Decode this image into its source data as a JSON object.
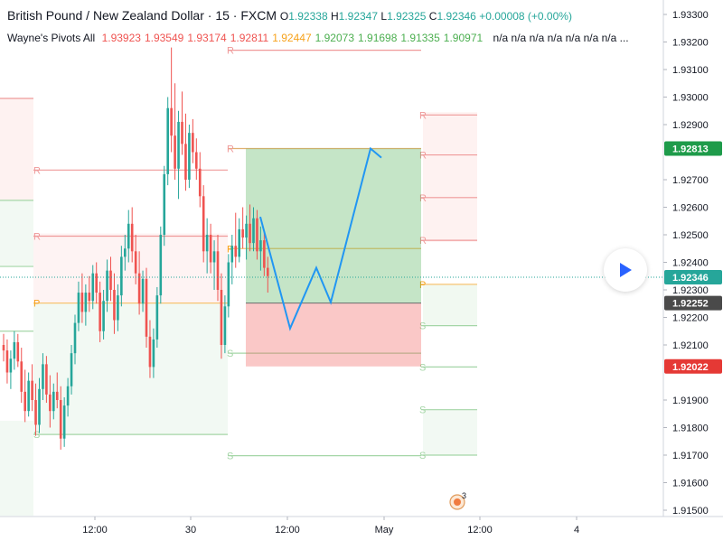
{
  "header": {
    "title": "British Pound / New Zealand Dollar · 15 · FXCM",
    "ohlc": [
      {
        "label": "O",
        "value": "1.92338"
      },
      {
        "label": "H",
        "value": "1.92347"
      },
      {
        "label": "L",
        "value": "1.92325"
      },
      {
        "label": "C",
        "value": "1.92346"
      }
    ],
    "change": "+0.00008 (+0.00%)",
    "up_color": "#26a69a"
  },
  "indicator": {
    "name": "Wayne's Pivots All",
    "values": [
      {
        "v": "1.93923",
        "color": "#ef5350"
      },
      {
        "v": "1.93549",
        "color": "#ef5350"
      },
      {
        "v": "1.93174",
        "color": "#ef5350"
      },
      {
        "v": "1.92811",
        "color": "#ef5350"
      },
      {
        "v": "1.92447",
        "color": "#f7a21b"
      },
      {
        "v": "1.92073",
        "color": "#4caf50"
      },
      {
        "v": "1.91698",
        "color": "#4caf50"
      },
      {
        "v": "1.91335",
        "color": "#4caf50"
      },
      {
        "v": "1.90971",
        "color": "#4caf50"
      }
    ],
    "na": "n/a n/a n/a n/a n/a n/a n/a ..."
  },
  "badges": [
    {
      "value": "1.92813",
      "price": 1.92813,
      "bg": "#1e9b4a"
    },
    {
      "value": "1.92346",
      "price": 1.92346,
      "bg": "#26a69a"
    },
    {
      "value": "1.92252",
      "price": 1.92252,
      "bg": "#4a4a4a"
    },
    {
      "value": "1.92022",
      "price": 1.92022,
      "bg": "#e53935"
    }
  ],
  "event_count": "3",
  "chart_data": {
    "type": "candlestick",
    "symbol": "GBPNZD",
    "timeframe": "15",
    "y_ticks": [
      "1.93300",
      "1.93200",
      "1.93100",
      "1.93000",
      "1.92900",
      "1.92700",
      "1.92600",
      "1.92500",
      "1.92400",
      "1.92300",
      "1.92200",
      "1.92100",
      "1.91900",
      "1.91800",
      "1.91700",
      "1.91600",
      "1.91500"
    ],
    "ylim": [
      1.9149,
      1.9336
    ],
    "x_ticks": [
      "12:00",
      "30",
      "12:00",
      "May",
      "12:00",
      "4"
    ],
    "last_price": 1.92346,
    "pivot_labels": {
      "left": [
        "R",
        "R",
        "P",
        "S",
        "S"
      ],
      "middle": [
        "R",
        "R",
        "P",
        "S",
        "S"
      ],
      "right": [
        "R",
        "R",
        "R",
        "R",
        "P",
        "S",
        "S",
        "S",
        "S"
      ]
    },
    "position": {
      "type": "long",
      "entry": 1.92252,
      "target": 1.92813,
      "stop": 1.92022
    },
    "candles": [
      [
        1.921,
        1.9214,
        1.9204,
        1.9208
      ],
      [
        1.9208,
        1.9212,
        1.9196,
        1.92
      ],
      [
        1.92,
        1.9208,
        1.9194,
        1.9205
      ],
      [
        1.9205,
        1.9215,
        1.9201,
        1.9211
      ],
      [
        1.9211,
        1.9214,
        1.9202,
        1.9204
      ],
      [
        1.9204,
        1.9209,
        1.9189,
        1.9193
      ],
      [
        1.9193,
        1.9201,
        1.9182,
        1.9186
      ],
      [
        1.9186,
        1.92,
        1.9184,
        1.9197
      ],
      [
        1.9197,
        1.9203,
        1.9186,
        1.919
      ],
      [
        1.919,
        1.9196,
        1.9177,
        1.9181
      ],
      [
        1.9181,
        1.9198,
        1.9178,
        1.9194
      ],
      [
        1.9194,
        1.9207,
        1.919,
        1.9203
      ],
      [
        1.9203,
        1.9206,
        1.9189,
        1.9192
      ],
      [
        1.9192,
        1.9199,
        1.918,
        1.9186
      ],
      [
        1.9186,
        1.9196,
        1.9183,
        1.9193
      ],
      [
        1.9193,
        1.92,
        1.9187,
        1.919
      ],
      [
        1.919,
        1.9195,
        1.9172,
        1.9176
      ],
      [
        1.9176,
        1.9191,
        1.9173,
        1.9188
      ],
      [
        1.9188,
        1.9198,
        1.9184,
        1.9195
      ],
      [
        1.9195,
        1.921,
        1.9192,
        1.9207
      ],
      [
        1.9207,
        1.9221,
        1.9203,
        1.9218
      ],
      [
        1.9218,
        1.9233,
        1.9215,
        1.9229
      ],
      [
        1.9229,
        1.9236,
        1.9218,
        1.9222
      ],
      [
        1.9222,
        1.9232,
        1.9217,
        1.9229
      ],
      [
        1.9229,
        1.9235,
        1.9222,
        1.9226
      ],
      [
        1.9226,
        1.9239,
        1.9223,
        1.9236
      ],
      [
        1.9236,
        1.924,
        1.9225,
        1.9229
      ],
      [
        1.9229,
        1.9233,
        1.9211,
        1.9215
      ],
      [
        1.9215,
        1.923,
        1.9212,
        1.9226
      ],
      [
        1.9226,
        1.9241,
        1.9222,
        1.9237
      ],
      [
        1.9237,
        1.9242,
        1.9226,
        1.923
      ],
      [
        1.923,
        1.9236,
        1.9214,
        1.9219
      ],
      [
        1.9219,
        1.9232,
        1.9215,
        1.9228
      ],
      [
        1.9228,
        1.9246,
        1.9224,
        1.9242
      ],
      [
        1.9242,
        1.925,
        1.9237,
        1.9245
      ],
      [
        1.9245,
        1.9259,
        1.924,
        1.9254
      ],
      [
        1.9254,
        1.926,
        1.924,
        1.9244
      ],
      [
        1.9244,
        1.925,
        1.9232,
        1.9236
      ],
      [
        1.9236,
        1.9244,
        1.9221,
        1.9225
      ],
      [
        1.9225,
        1.9237,
        1.9222,
        1.9234
      ],
      [
        1.9234,
        1.9238,
        1.9209,
        1.9213
      ],
      [
        1.9213,
        1.9219,
        1.9198,
        1.9202
      ],
      [
        1.9202,
        1.9216,
        1.9198,
        1.9212
      ],
      [
        1.9212,
        1.9231,
        1.9209,
        1.9228
      ],
      [
        1.9228,
        1.9253,
        1.9225,
        1.925
      ],
      [
        1.925,
        1.9275,
        1.9246,
        1.9272
      ],
      [
        1.9272,
        1.93,
        1.9268,
        1.9296
      ],
      [
        1.9296,
        1.9318,
        1.928,
        1.9286
      ],
      [
        1.9286,
        1.9305,
        1.927,
        1.9274
      ],
      [
        1.9274,
        1.9295,
        1.9263,
        1.9291
      ],
      [
        1.9291,
        1.9302,
        1.9279,
        1.9283
      ],
      [
        1.9283,
        1.9294,
        1.9266,
        1.927
      ],
      [
        1.927,
        1.929,
        1.9267,
        1.9287
      ],
      [
        1.9287,
        1.9292,
        1.9276,
        1.928
      ],
      [
        1.928,
        1.9285,
        1.927,
        1.9274
      ],
      [
        1.9274,
        1.928,
        1.926,
        1.9264
      ],
      [
        1.9264,
        1.9268,
        1.924,
        1.9244
      ],
      [
        1.9244,
        1.9256,
        1.9236,
        1.925
      ],
      [
        1.925,
        1.9254,
        1.9236,
        1.924
      ],
      [
        1.924,
        1.9248,
        1.923,
        1.9244
      ],
      [
        1.9244,
        1.925,
        1.9226,
        1.923
      ],
      [
        1.923,
        1.9236,
        1.9205,
        1.921
      ],
      [
        1.921,
        1.9228,
        1.9207,
        1.9224
      ],
      [
        1.9224,
        1.9243,
        1.922,
        1.924
      ],
      [
        1.924,
        1.925,
        1.9232,
        1.9246
      ],
      [
        1.9246,
        1.9258,
        1.9238,
        1.9242
      ],
      [
        1.9242,
        1.9256,
        1.924,
        1.9252
      ],
      [
        1.9252,
        1.926,
        1.9245,
        1.9249
      ],
      [
        1.9249,
        1.9257,
        1.9241,
        1.9254
      ],
      [
        1.9254,
        1.9261,
        1.9244,
        1.9247
      ],
      [
        1.9247,
        1.926,
        1.9244,
        1.9256
      ],
      [
        1.9256,
        1.9259,
        1.9241,
        1.9244
      ],
      [
        1.9244,
        1.9253,
        1.9237,
        1.9248
      ],
      [
        1.9248,
        1.9251,
        1.9235,
        1.9238
      ],
      [
        1.9238,
        1.9242,
        1.9229,
        1.9235
      ]
    ]
  }
}
